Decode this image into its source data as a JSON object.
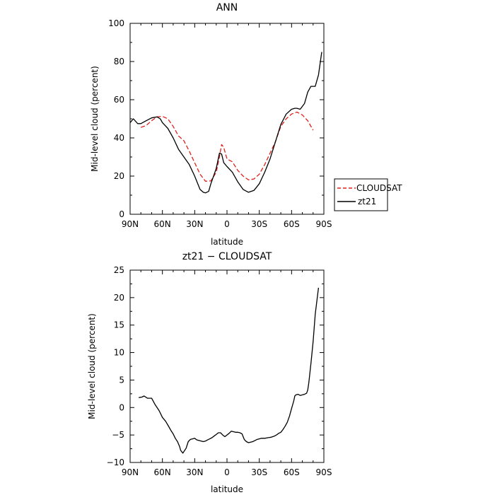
{
  "chart_data": [
    {
      "type": "line",
      "title": "ANN",
      "xlabel": "latitude",
      "ylabel": "Mid-level cloud (percent)",
      "xlim": [
        -90,
        90
      ],
      "ylim": [
        0,
        100
      ],
      "x_ticks": [
        -90,
        -60,
        -30,
        0,
        30,
        60,
        90
      ],
      "x_tick_labels": [
        "90N",
        "60N",
        "30N",
        "0",
        "30S",
        "60S",
        "90S"
      ],
      "y_ticks": [
        0,
        20,
        40,
        60,
        80,
        100
      ],
      "y_tick_labels": [
        "0",
        "20",
        "40",
        "60",
        "80",
        "100"
      ],
      "legend": {
        "position": "right",
        "entries": [
          "CLOUDSAT",
          "zt21"
        ]
      },
      "series": [
        {
          "name": "CLOUDSAT",
          "color": "#e0201b",
          "dash": "dashed",
          "x": [
            -80,
            -75,
            -70,
            -65,
            -60,
            -55,
            -50,
            -45,
            -40,
            -35,
            -30,
            -25,
            -20,
            -15,
            -10,
            -7,
            -5,
            -3,
            0,
            5,
            10,
            15,
            20,
            25,
            30,
            35,
            40,
            45,
            50,
            55,
            60,
            65,
            70,
            75,
            80
          ],
          "values": [
            45.5,
            46.5,
            49,
            51,
            51.3,
            50,
            46,
            41,
            38.5,
            33,
            27,
            21,
            17.3,
            17.5,
            22,
            30,
            36.5,
            35,
            29,
            27.5,
            23,
            20,
            18,
            18.5,
            21,
            26,
            32,
            38,
            46,
            50,
            52.5,
            53.5,
            52,
            49,
            44
          ]
        },
        {
          "name": "zt21",
          "color": "#000000",
          "dash": "solid",
          "x": [
            -90,
            -87,
            -83,
            -80,
            -75,
            -70,
            -65,
            -62,
            -60,
            -55,
            -50,
            -45,
            -40,
            -35,
            -30,
            -25,
            -22,
            -20,
            -17,
            -15,
            -10,
            -7,
            -5,
            -3,
            0,
            5,
            10,
            15,
            20,
            25,
            30,
            35,
            40,
            45,
            50,
            55,
            60,
            63,
            65,
            68,
            72,
            75,
            78,
            82,
            85,
            88
          ],
          "values": [
            48,
            50,
            47.5,
            47.5,
            49,
            50.5,
            51,
            50,
            48,
            45,
            40,
            34,
            30,
            26,
            20,
            13,
            11.5,
            11.2,
            12,
            16,
            24,
            32,
            31.5,
            27,
            25,
            22,
            17,
            13,
            11.5,
            12.5,
            16,
            22,
            29,
            38,
            47,
            52.5,
            55,
            55.5,
            55.5,
            55,
            58,
            64,
            67,
            67,
            73,
            85
          ]
        }
      ]
    },
    {
      "type": "line",
      "title": "zt21 − CLOUDSAT",
      "xlabel": "latitude",
      "ylabel": "Mid-level cloud (percent)",
      "xlim": [
        -90,
        90
      ],
      "ylim": [
        -10,
        25
      ],
      "x_ticks": [
        -90,
        -60,
        -30,
        0,
        30,
        60,
        90
      ],
      "x_tick_labels": [
        "90N",
        "60N",
        "30N",
        "0",
        "30S",
        "60S",
        "90S"
      ],
      "y_ticks": [
        -10,
        -5,
        0,
        5,
        10,
        15,
        20,
        25
      ],
      "y_tick_labels": [
        "−10",
        "−5",
        "0",
        "5",
        "10",
        "15",
        "20",
        "25"
      ],
      "series": [
        {
          "color": "#000000",
          "dash": "solid",
          "x": [
            -82,
            -79,
            -77,
            -74,
            -70,
            -67,
            -63,
            -60,
            -57,
            -54,
            -52,
            -50,
            -48,
            -46,
            -44,
            -43,
            -41,
            -38,
            -36,
            -34,
            -32,
            -30,
            -28,
            -26,
            -24,
            -22,
            -20,
            -18,
            -16,
            -14,
            -12,
            -10,
            -8,
            -6,
            -4,
            -2,
            0,
            2,
            4,
            6,
            8,
            10,
            12,
            14,
            16,
            18,
            20,
            22,
            24,
            26,
            28,
            30,
            32,
            35,
            38,
            41,
            44,
            46,
            48,
            50,
            52,
            54,
            56,
            58,
            60,
            62,
            63,
            64,
            66,
            68,
            70,
            72,
            74,
            75,
            76,
            78,
            80,
            82,
            85
          ],
          "values": [
            1.8,
            1.9,
            2.1,
            1.7,
            1.7,
            0.6,
            -0.6,
            -1.8,
            -2.5,
            -3.5,
            -4.2,
            -4.8,
            -5.6,
            -6.2,
            -7.1,
            -7.8,
            -8.3,
            -7.4,
            -6.2,
            -5.8,
            -5.7,
            -5.6,
            -5.9,
            -6.0,
            -6.1,
            -6.2,
            -6.1,
            -5.9,
            -5.7,
            -5.5,
            -5.2,
            -4.9,
            -4.6,
            -4.6,
            -5.0,
            -5.3,
            -5.0,
            -4.7,
            -4.3,
            -4.4,
            -4.5,
            -4.5,
            -4.6,
            -4.8,
            -5.8,
            -6.2,
            -6.4,
            -6.3,
            -6.2,
            -6.0,
            -5.8,
            -5.7,
            -5.6,
            -5.6,
            -5.5,
            -5.4,
            -5.2,
            -5.0,
            -4.7,
            -4.5,
            -4.0,
            -3.4,
            -2.7,
            -1.6,
            -0.2,
            1.2,
            2.1,
            2.3,
            2.4,
            2.2,
            2.3,
            2.4,
            2.6,
            3.2,
            4.5,
            8.0,
            12.0,
            17.0,
            21.8
          ]
        }
      ]
    }
  ]
}
